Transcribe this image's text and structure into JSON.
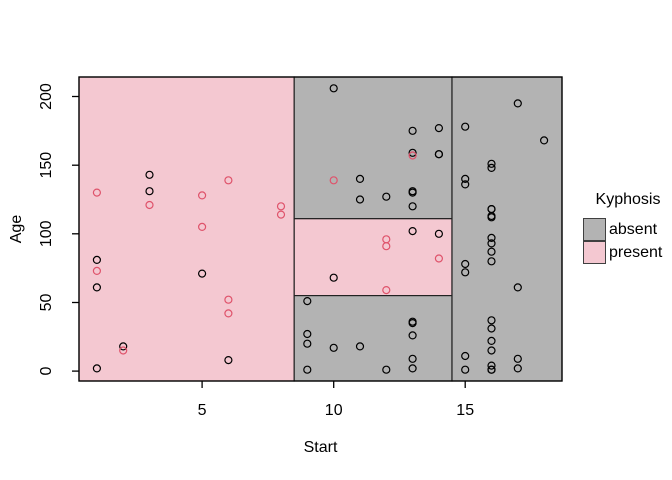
{
  "chart_data": {
    "type": "scatter",
    "title": "",
    "xlabel": "Start",
    "ylabel": "Age",
    "x_ticks": [
      5,
      10,
      15
    ],
    "y_ticks": [
      0,
      50,
      100,
      150,
      200
    ],
    "xlim": [
      0.32,
      18.68
    ],
    "ylim": [
      -7.2,
      214.2
    ],
    "grid": false,
    "point_style": "open-circle",
    "region_border_color": "#222222",
    "regions": [
      {
        "class": "present",
        "x0": 0.32,
        "x1": 8.5,
        "y0": -7.2,
        "y1": 214.2
      },
      {
        "class": "absent",
        "x0": 8.5,
        "x1": 14.5,
        "y0": 111,
        "y1": 214.2
      },
      {
        "class": "present",
        "x0": 8.5,
        "x1": 14.5,
        "y0": 55,
        "y1": 111
      },
      {
        "class": "absent",
        "x0": 8.5,
        "x1": 14.5,
        "y0": -7.2,
        "y1": 55
      },
      {
        "class": "absent",
        "x0": 14.5,
        "x1": 18.68,
        "y0": -7.2,
        "y1": 214.2
      }
    ],
    "series": [
      {
        "name": "absent",
        "points": [
          [
            5,
            71
          ],
          [
            14,
            158
          ],
          [
            1,
            2
          ],
          [
            15,
            1
          ],
          [
            16,
            1
          ],
          [
            17,
            61
          ],
          [
            16,
            37
          ],
          [
            16,
            113
          ],
          [
            16,
            148
          ],
          [
            2,
            18
          ],
          [
            12,
            1
          ],
          [
            18,
            168
          ],
          [
            16,
            1
          ],
          [
            15,
            78
          ],
          [
            13,
            175
          ],
          [
            16,
            80
          ],
          [
            9,
            27
          ],
          [
            16,
            22
          ],
          [
            3,
            131
          ],
          [
            13,
            9
          ],
          [
            6,
            8
          ],
          [
            14,
            100
          ],
          [
            16,
            4
          ],
          [
            16,
            151
          ],
          [
            16,
            31
          ],
          [
            11,
            125
          ],
          [
            13,
            130
          ],
          [
            16,
            112
          ],
          [
            11,
            140
          ],
          [
            16,
            93
          ],
          [
            9,
            1
          ],
          [
            9,
            20
          ],
          [
            13,
            35
          ],
          [
            3,
            143
          ],
          [
            1,
            61
          ],
          [
            16,
            97
          ],
          [
            15,
            136
          ],
          [
            13,
            131
          ],
          [
            14,
            177
          ],
          [
            10,
            68
          ],
          [
            17,
            9
          ],
          [
            17,
            2
          ],
          [
            15,
            140
          ],
          [
            15,
            72
          ],
          [
            13,
            2
          ],
          [
            9,
            51
          ],
          [
            13,
            102
          ],
          [
            1,
            81
          ],
          [
            16,
            118
          ],
          [
            16,
            118
          ],
          [
            10,
            17
          ],
          [
            17,
            195
          ],
          [
            13,
            159
          ],
          [
            11,
            18
          ],
          [
            16,
            15
          ],
          [
            14,
            158
          ],
          [
            12,
            127
          ],
          [
            16,
            87
          ],
          [
            10,
            206
          ],
          [
            15,
            11
          ],
          [
            15,
            178
          ],
          [
            13,
            26
          ],
          [
            13,
            120
          ],
          [
            13,
            36
          ]
        ]
      },
      {
        "name": "present",
        "points": [
          [
            5,
            128
          ],
          [
            12,
            59
          ],
          [
            14,
            82
          ],
          [
            2,
            15
          ],
          [
            5,
            105
          ],
          [
            12,
            96
          ],
          [
            6,
            52
          ],
          [
            12,
            91
          ],
          [
            1,
            73
          ],
          [
            10,
            139
          ],
          [
            6,
            139
          ],
          [
            8,
            120
          ],
          [
            1,
            130
          ],
          [
            8,
            114
          ],
          [
            3,
            121
          ],
          [
            13,
            157
          ],
          [
            6,
            42
          ]
        ]
      }
    ]
  },
  "legend": {
    "title": "Kyphosis",
    "items": [
      {
        "label": "absent",
        "fill": "#b3b3b3",
        "point_color": "#000000"
      },
      {
        "label": "present",
        "fill": "#f4c8d1",
        "point_color": "#df536b"
      }
    ]
  }
}
